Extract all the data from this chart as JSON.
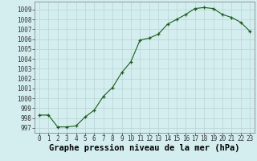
{
  "x": [
    0,
    1,
    2,
    3,
    4,
    5,
    6,
    7,
    8,
    9,
    10,
    11,
    12,
    13,
    14,
    15,
    16,
    17,
    18,
    19,
    20,
    21,
    22,
    23
  ],
  "y": [
    998.3,
    998.3,
    997.1,
    997.1,
    997.2,
    998.1,
    998.8,
    1000.2,
    1001.1,
    1002.6,
    1003.7,
    1005.9,
    1006.1,
    1006.5,
    1007.5,
    1008.0,
    1008.5,
    1009.1,
    1009.2,
    1009.1,
    1008.5,
    1008.2,
    1007.7,
    1006.8
  ],
  "ylim": [
    996.5,
    1009.8
  ],
  "yticks": [
    997,
    998,
    999,
    1000,
    1001,
    1002,
    1003,
    1004,
    1005,
    1006,
    1007,
    1008,
    1009
  ],
  "xlim": [
    -0.5,
    23.5
  ],
  "xticks": [
    0,
    1,
    2,
    3,
    4,
    5,
    6,
    7,
    8,
    9,
    10,
    11,
    12,
    13,
    14,
    15,
    16,
    17,
    18,
    19,
    20,
    21,
    22,
    23
  ],
  "xlabel": "Graphe pression niveau de la mer (hPa)",
  "line_color": "#1a5c1a",
  "marker": "+",
  "bg_color": "#d4eef0",
  "grid_color": "#b8d4d4",
  "tick_fontsize": 5.5,
  "label_fontsize": 7.5
}
